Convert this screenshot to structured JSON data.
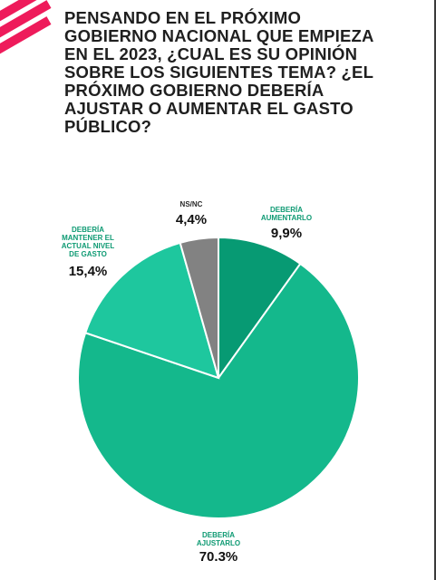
{
  "title": "PENSANDO EN EL PRÓXIMO GOBIERNO NACIONAL QUE EMPIEZA EN EL 2023, ¿CUAL ES SU OPINIÓN SOBRE LOS SIGUIENTES TEMA? ¿EL PRÓXIMO GOBIERNO DEBERÍA AJUSTAR O AUMENTAR EL GASTO PÚBLICO?",
  "colors": {
    "accent": "#ee1b5b",
    "label_green": "#0e9a73",
    "label_gray": "#2a2a2a"
  },
  "chart_data": {
    "type": "pie",
    "slices": [
      {
        "name_lines": [
          "DEBERÍA",
          "AUMENTARLO"
        ],
        "label": "9,9%",
        "value": 9.9,
        "color": "#079a73",
        "label_color": "#0e9a73"
      },
      {
        "name_lines": [
          "DEBERÍA",
          "AJUSTARLO"
        ],
        "label": "70.3%",
        "value": 70.3,
        "color": "#14b88c",
        "label_color": "#0e9a73"
      },
      {
        "name_lines": [
          "DEBERÍA",
          "MANTENER EL",
          "ACTUAL NIVEL",
          "DE GASTO"
        ],
        "label": "15,4%",
        "value": 15.4,
        "color": "#1ec79e",
        "label_color": "#0e9a73"
      },
      {
        "name_lines": [
          "NS/NC"
        ],
        "label": "4,4%",
        "value": 4.4,
        "color": "#828282",
        "label_color": "#2a2a2a"
      }
    ]
  }
}
